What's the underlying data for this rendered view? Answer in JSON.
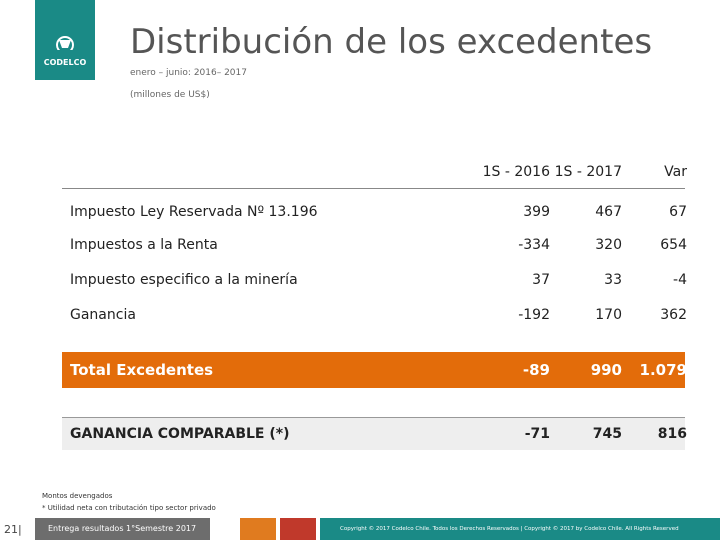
{
  "logo": {
    "text": "CODELCO"
  },
  "header": {
    "title": "Distribución de los excedentes",
    "subtitle": "enero – junio: 2016– 2017",
    "units": "(millones de US$)"
  },
  "table": {
    "columns": [
      "",
      "1S - 2016",
      "1S - 2017",
      "Var"
    ],
    "rows": [
      [
        "Impuesto Ley Reservada Nº 13.196",
        "399",
        "467",
        "67"
      ],
      [
        "Impuestos a la Renta",
        "-334",
        "320",
        "654"
      ],
      [
        "Impuesto especifico a la minería",
        "37",
        "33",
        "-4"
      ],
      [
        "Ganancia",
        "-192",
        "170",
        "362"
      ],
      [
        "Total Excedentes",
        "-89",
        "990",
        "1.079"
      ],
      [
        "GANANCIA COMPARABLE (*)",
        "-71",
        "745",
        "816"
      ]
    ]
  },
  "notes": [
    "Montos devengados",
    "* Utilidad neta con tributación tipo sector privado"
  ],
  "footer": {
    "page": "21|",
    "label": "Entrega resultados 1°Semestre 2017",
    "copyright": "Copyright © 2017 Codelco Chile. Todos los Derechos Reservados | Copyright © 2017 by Codelco Chile. All Rights Reserved"
  }
}
